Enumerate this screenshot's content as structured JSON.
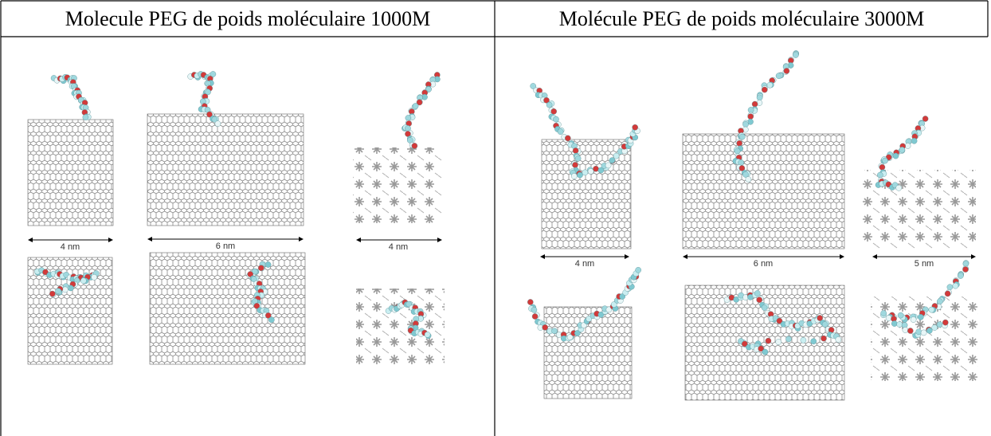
{
  "table": {
    "header": [
      "Molecule PEG de poids moléculaire 1000M",
      "Molécule PEG de poids moléculaire 3000M"
    ],
    "cells": [
      {
        "scale_labels": [
          "4 nm",
          "6 nm",
          "4 nm"
        ]
      },
      {
        "scale_labels": [
          "4 nm",
          "6 nm",
          "5 nm"
        ]
      }
    ]
  }
}
